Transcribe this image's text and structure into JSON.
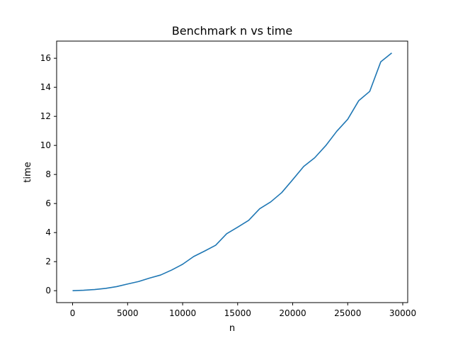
{
  "chart_data": {
    "type": "line",
    "title": "Benchmark n vs time",
    "xlabel": "n",
    "ylabel": "time",
    "xlim": [
      -1450,
      30450
    ],
    "ylim": [
      -0.82,
      17.18
    ],
    "x_ticks": [
      0,
      5000,
      10000,
      15000,
      20000,
      25000,
      30000
    ],
    "x_tick_labels": [
      "0",
      "5000",
      "10000",
      "15000",
      "20000",
      "25000",
      "30000"
    ],
    "y_ticks": [
      0,
      2,
      4,
      6,
      8,
      10,
      12,
      14,
      16
    ],
    "y_tick_labels": [
      "0",
      "2",
      "4",
      "6",
      "8",
      "10",
      "12",
      "14",
      "16"
    ],
    "grid": false,
    "line_color": "#1f77b4",
    "series": [
      {
        "x": [
          0,
          1000,
          2000,
          3000,
          4000,
          5000,
          6000,
          7000,
          8000,
          9000,
          10000,
          11000,
          12000,
          13000,
          14000,
          15000,
          16000,
          17000,
          18000,
          19000,
          20000,
          21000,
          22000,
          23000,
          24000,
          25000,
          26000,
          27000,
          28000,
          29000
        ],
        "y": [
          0.0,
          0.03,
          0.08,
          0.16,
          0.28,
          0.46,
          0.63,
          0.87,
          1.08,
          1.42,
          1.82,
          2.35,
          2.73,
          3.13,
          3.92,
          4.37,
          4.84,
          5.64,
          6.11,
          6.75,
          7.64,
          8.55,
          9.15,
          9.98,
          10.97,
          11.8,
          13.08,
          13.72,
          15.75,
          16.36
        ]
      }
    ]
  }
}
